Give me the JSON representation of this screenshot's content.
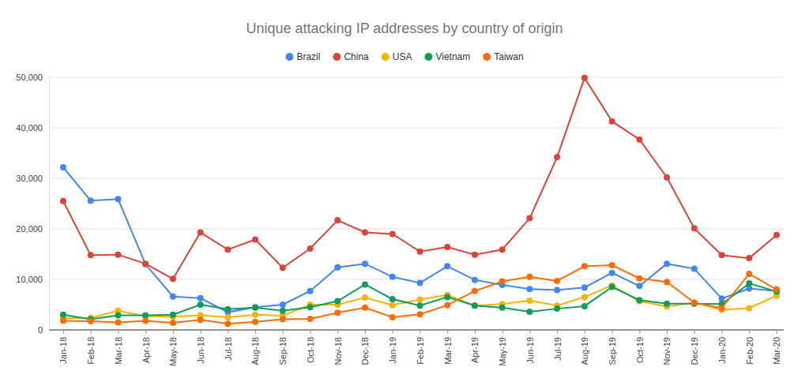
{
  "chart_data": {
    "type": "line",
    "title": "Unique attacking IP addresses by country of origin",
    "categories": [
      "Jan-18",
      "Feb-18",
      "Mar-18",
      "Apr-18",
      "May-18",
      "Jun-18",
      "Jul-18",
      "Aug-18",
      "Sep-18",
      "Oct-18",
      "Nov-18",
      "Dec-18",
      "Jan-19",
      "Feb-19",
      "Mar-19",
      "Apr-19",
      "May-19",
      "Jun-19",
      "Jul-19",
      "Aug-19",
      "Sep-19",
      "Oct-19",
      "Nov-19",
      "Dec-19",
      "Jan-20",
      "Feb-20",
      "Mar-20"
    ],
    "series": [
      {
        "name": "Brazil",
        "color": "#4285f4",
        "values": [
          32200,
          25600,
          25900,
          13000,
          6600,
          6300,
          3500,
          4500,
          5000,
          7700,
          12400,
          13100,
          10500,
          9300,
          12600,
          9900,
          8900,
          8100,
          7900,
          8400,
          11300,
          8700,
          13100,
          12100,
          6200,
          8200,
          7700
        ]
      },
      {
        "name": "China",
        "color": "#db4437",
        "values": [
          25500,
          14800,
          14900,
          13100,
          10100,
          19300,
          15900,
          17900,
          12300,
          16100,
          21700,
          19300,
          19000,
          15500,
          16400,
          14900,
          15900,
          22100,
          34200,
          49900,
          41300,
          37700,
          30200,
          20100,
          14800,
          14200,
          18800
        ]
      },
      {
        "name": "USA",
        "color": "#f4b400",
        "values": [
          2300,
          2400,
          3800,
          2700,
          2600,
          2900,
          2500,
          3000,
          2800,
          5000,
          5000,
          6400,
          4900,
          6000,
          6900,
          4800,
          5100,
          5800,
          4800,
          6500,
          8800,
          5700,
          4600,
          5400,
          4000,
          4300,
          6800
        ]
      },
      {
        "name": "Vietnam",
        "color": "#0f9d58",
        "values": [
          3000,
          2100,
          2900,
          2900,
          3000,
          5000,
          4100,
          4400,
          3800,
          4500,
          5700,
          9000,
          6100,
          4800,
          6500,
          4800,
          4400,
          3600,
          4200,
          4700,
          8500,
          5900,
          5200,
          5200,
          5100,
          9200,
          7600
        ]
      },
      {
        "name": "Taiwan",
        "color": "#ff6d00",
        "values": [
          1800,
          1700,
          1500,
          1800,
          1400,
          2000,
          1200,
          1600,
          2100,
          2200,
          3400,
          4400,
          2500,
          3100,
          4900,
          7700,
          9600,
          10500,
          9700,
          12600,
          12800,
          10200,
          9500,
          5400,
          4300,
          11100,
          8000
        ]
      }
    ],
    "ylim": [
      0,
      50000
    ],
    "yticks": [
      0,
      {
        "value": 10000,
        "label": "10,000"
      },
      {
        "value": 20000,
        "label": "20,000"
      },
      {
        "value": 30000,
        "label": "30,000"
      },
      {
        "value": 40000,
        "label": "40,000"
      },
      {
        "value": 50000,
        "label": "50,000"
      }
    ],
    "grid": true,
    "legend": "top",
    "marker": "circle"
  }
}
